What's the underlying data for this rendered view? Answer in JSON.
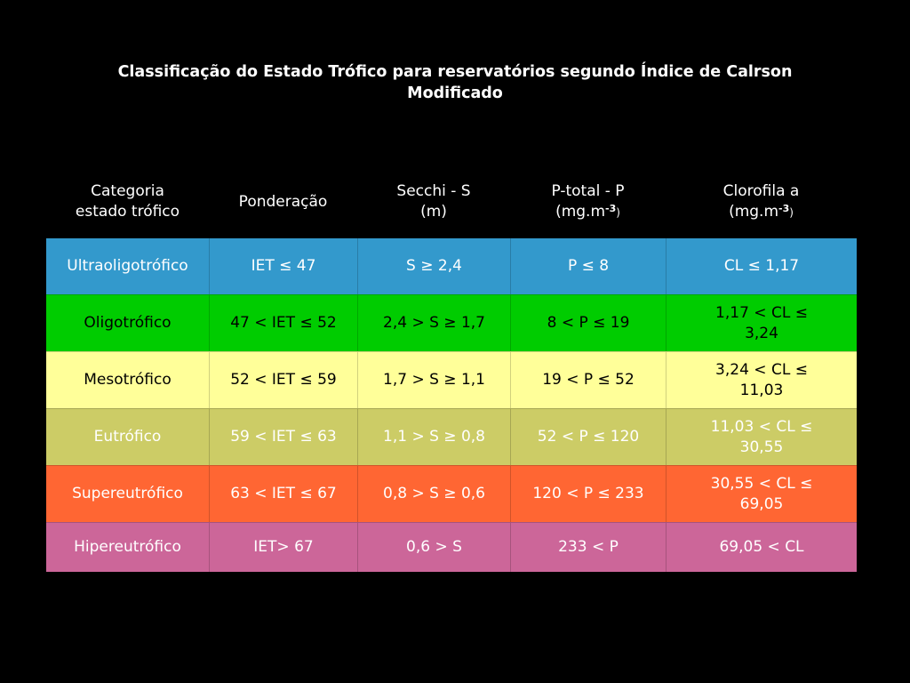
{
  "title": {
    "line1": "Classificação do Estado Trófico para reservatórios segundo Índice de Calrson",
    "line2": "Modificado"
  },
  "headers": [
    {
      "line1": "Categoria",
      "line2": "estado trófico"
    },
    {
      "line1": "Ponderação",
      "line2": ""
    },
    {
      "line1": "Secchi - S",
      "line2": "(m)"
    },
    {
      "line1": "P-total - P",
      "line2_pre": "(mg.m",
      "line2_sup": "-3",
      "line2_post": ")"
    },
    {
      "line1": "Clorofila a",
      "line2_pre": "(mg.m",
      "line2_sup": "-3",
      "line2_post": ")"
    }
  ],
  "rows": [
    {
      "category": "Ultraoligotrófico",
      "ponderacao": "IET ≤ 47",
      "secchi": "S ≥ 2,4",
      "ptotal": "P ≤ 8",
      "clorofila": "CL ≤ 1,17",
      "bg": "#3399cc",
      "fg": "#ffffff"
    },
    {
      "category": "Oligotrófico",
      "ponderacao": "47 < IET ≤ 52",
      "secchi": "2,4 > S ≥ 1,7",
      "ptotal": "8 < P ≤ 19",
      "clorofila": "1,17 < CL ≤ 3,24",
      "bg": "#00cc00",
      "fg": "#000000"
    },
    {
      "category": "Mesotrófico",
      "ponderacao": "52 < IET ≤ 59",
      "secchi": "1,7 > S ≥ 1,1",
      "ptotal": "19 < P ≤ 52",
      "clorofila": "3,24 < CL ≤ 11,03",
      "bg": "#ffff99",
      "fg": "#000000"
    },
    {
      "category": "Eutrófico",
      "ponderacao": "59 < IET ≤ 63",
      "secchi": "1,1 > S ≥ 0,8",
      "ptotal": "52 < P ≤ 120",
      "clorofila": "11,03 < CL ≤ 30,55",
      "bg": "#cccc66",
      "fg": "#ffffff"
    },
    {
      "category": "Supereutrófico",
      "ponderacao": "63 < IET ≤ 67",
      "secchi": "0,8 > S ≥ 0,6",
      "ptotal": "120 < P ≤ 233",
      "clorofila": "30,55 < CL ≤ 69,05",
      "bg": "#ff6633",
      "fg": "#ffffff"
    },
    {
      "category": "Hipereutrófico",
      "ponderacao": "IET> 67",
      "secchi": "0,6 > S",
      "ptotal": "233 < P",
      "clorofila": "69,05 < CL",
      "bg": "#cc6699",
      "fg": "#ffffff"
    }
  ]
}
